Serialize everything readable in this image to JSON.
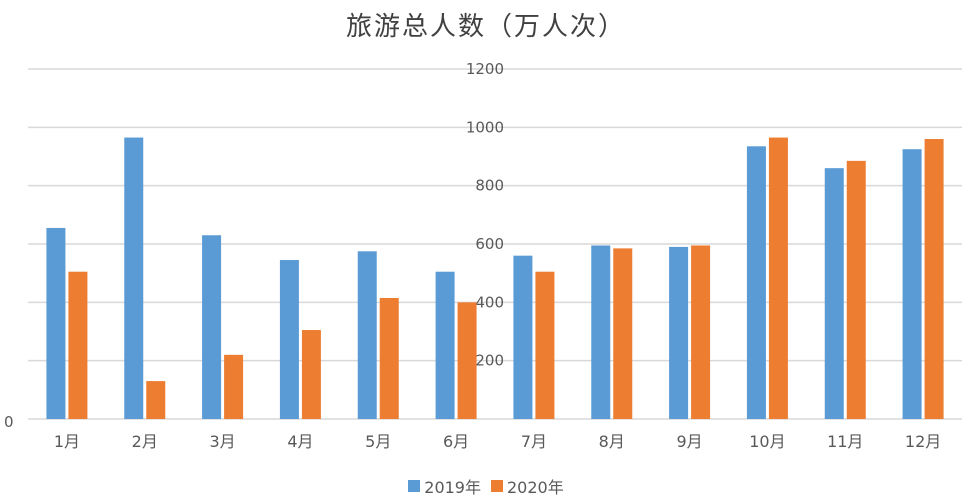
{
  "chart_data": {
    "type": "bar",
    "title": "旅游总人数（万人次）",
    "categories": [
      "1月",
      "2月",
      "3月",
      "4月",
      "5月",
      "6月",
      "7月",
      "8月",
      "9月",
      "10月",
      "11月",
      "12月"
    ],
    "series": [
      {
        "name": "2019年",
        "color": "#5B9BD5",
        "values": [
          655,
          965,
          630,
          545,
          575,
          505,
          560,
          595,
          590,
          935,
          860,
          925
        ]
      },
      {
        "name": "2020年",
        "color": "#ED7D31",
        "values": [
          505,
          130,
          220,
          305,
          415,
          400,
          505,
          585,
          595,
          965,
          885,
          960
        ]
      }
    ],
    "yticks": [
      "1200",
      "1000",
      "800",
      "600",
      "400",
      "200",
      "0"
    ],
    "ylim": [
      0,
      1200
    ],
    "grid": true,
    "legend_position": "bottom"
  }
}
